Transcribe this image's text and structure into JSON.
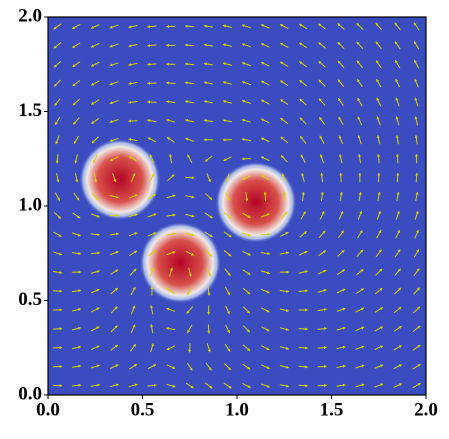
{
  "chart_data": {
    "type": "heatmap-quiver",
    "xlim": [
      0,
      2
    ],
    "ylim": [
      0,
      2
    ],
    "xticks": [
      {
        "value": 0,
        "label": "0.0"
      },
      {
        "value": 0.5,
        "label": "0.5"
      },
      {
        "value": 1,
        "label": "1.0"
      },
      {
        "value": 1.5,
        "label": "1.5"
      },
      {
        "value": 2,
        "label": "2.0"
      }
    ],
    "yticks": [
      {
        "value": 0,
        "label": "0.0"
      },
      {
        "value": 0.5,
        "label": "0.5"
      },
      {
        "value": 1,
        "label": "1.0"
      },
      {
        "value": 1.5,
        "label": "1.5"
      },
      {
        "value": 2,
        "label": "2.0"
      }
    ],
    "background_color": "#3b4cc0",
    "blob_color": "#b40426",
    "arrow_color": "#d4d400",
    "blobs": [
      {
        "x": 0.38,
        "y": 1.14,
        "r": 0.16
      },
      {
        "x": 0.7,
        "y": 0.7,
        "r": 0.16
      },
      {
        "x": 1.1,
        "y": 1.02,
        "r": 0.16
      }
    ]
  }
}
